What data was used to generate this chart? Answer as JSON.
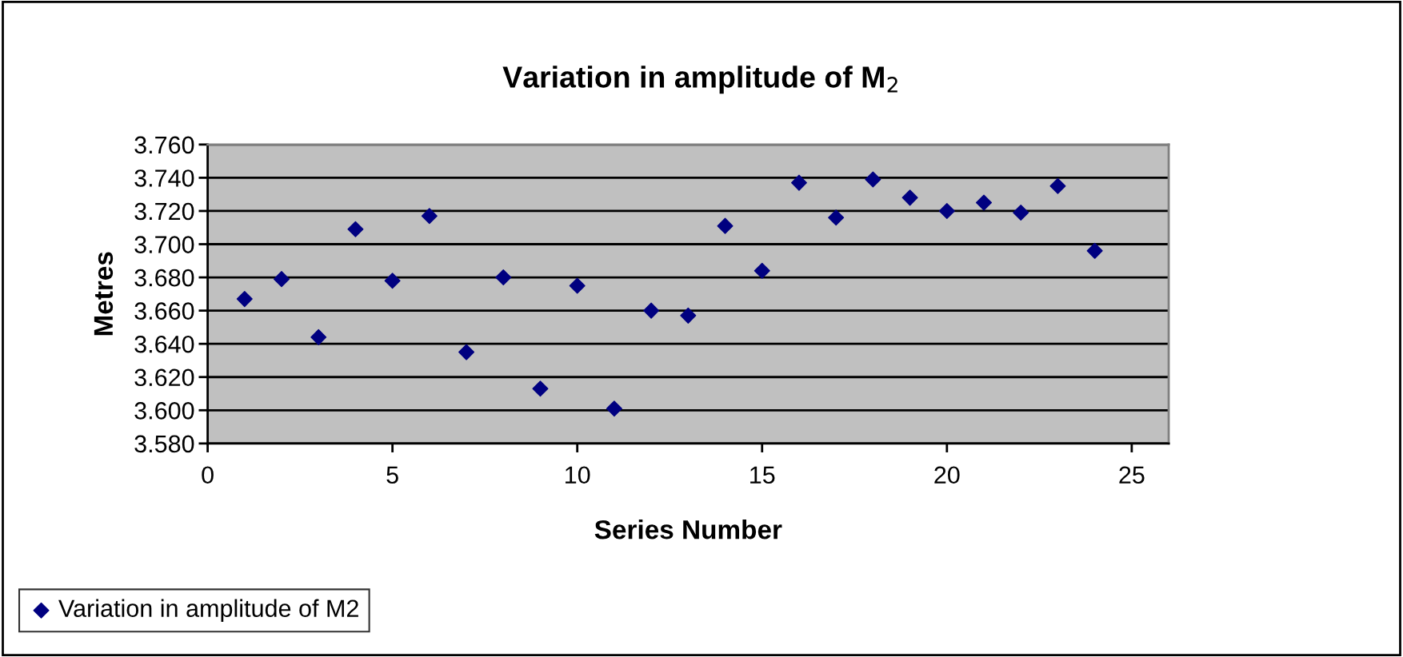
{
  "chart_data": {
    "type": "scatter",
    "title": "Variation in amplitude of M$_{2}$",
    "xlabel": "Series Number",
    "ylabel": "Metres",
    "x": [
      1,
      2,
      3,
      4,
      5,
      6,
      7,
      8,
      9,
      10,
      11,
      12,
      13,
      14,
      15,
      16,
      17,
      18,
      19,
      20,
      21,
      22,
      23,
      24
    ],
    "series": [
      {
        "name": "Variation in amplitude of M2",
        "color": "#000080",
        "values": [
          3.667,
          3.679,
          3.644,
          3.709,
          3.678,
          3.717,
          3.635,
          3.68,
          3.613,
          3.675,
          3.601,
          3.66,
          3.657,
          3.711,
          3.684,
          3.737,
          3.716,
          3.739,
          3.728,
          3.72,
          3.725,
          3.719,
          3.735,
          3.696
        ]
      }
    ],
    "xlim": [
      0,
      26
    ],
    "xticks": [
      0,
      5,
      10,
      15,
      20,
      25
    ],
    "ylim": [
      3.58,
      3.76
    ],
    "yticks": [
      {
        "value": 3.58,
        "label": "3.580"
      },
      {
        "value": 3.6,
        "label": "3.600"
      },
      {
        "value": 3.62,
        "label": "3.620"
      },
      {
        "value": 3.64,
        "label": "3.640"
      },
      {
        "value": 3.66,
        "label": "3.660"
      },
      {
        "value": 3.68,
        "label": "3.680"
      },
      {
        "value": 3.7,
        "label": "3.700"
      },
      {
        "value": 3.72,
        "label": "3.720"
      },
      {
        "value": 3.74,
        "label": "3.740"
      },
      {
        "value": 3.76,
        "label": "3.760"
      }
    ],
    "grid": "y",
    "legend": "bottom left",
    "marker": "diamond"
  }
}
